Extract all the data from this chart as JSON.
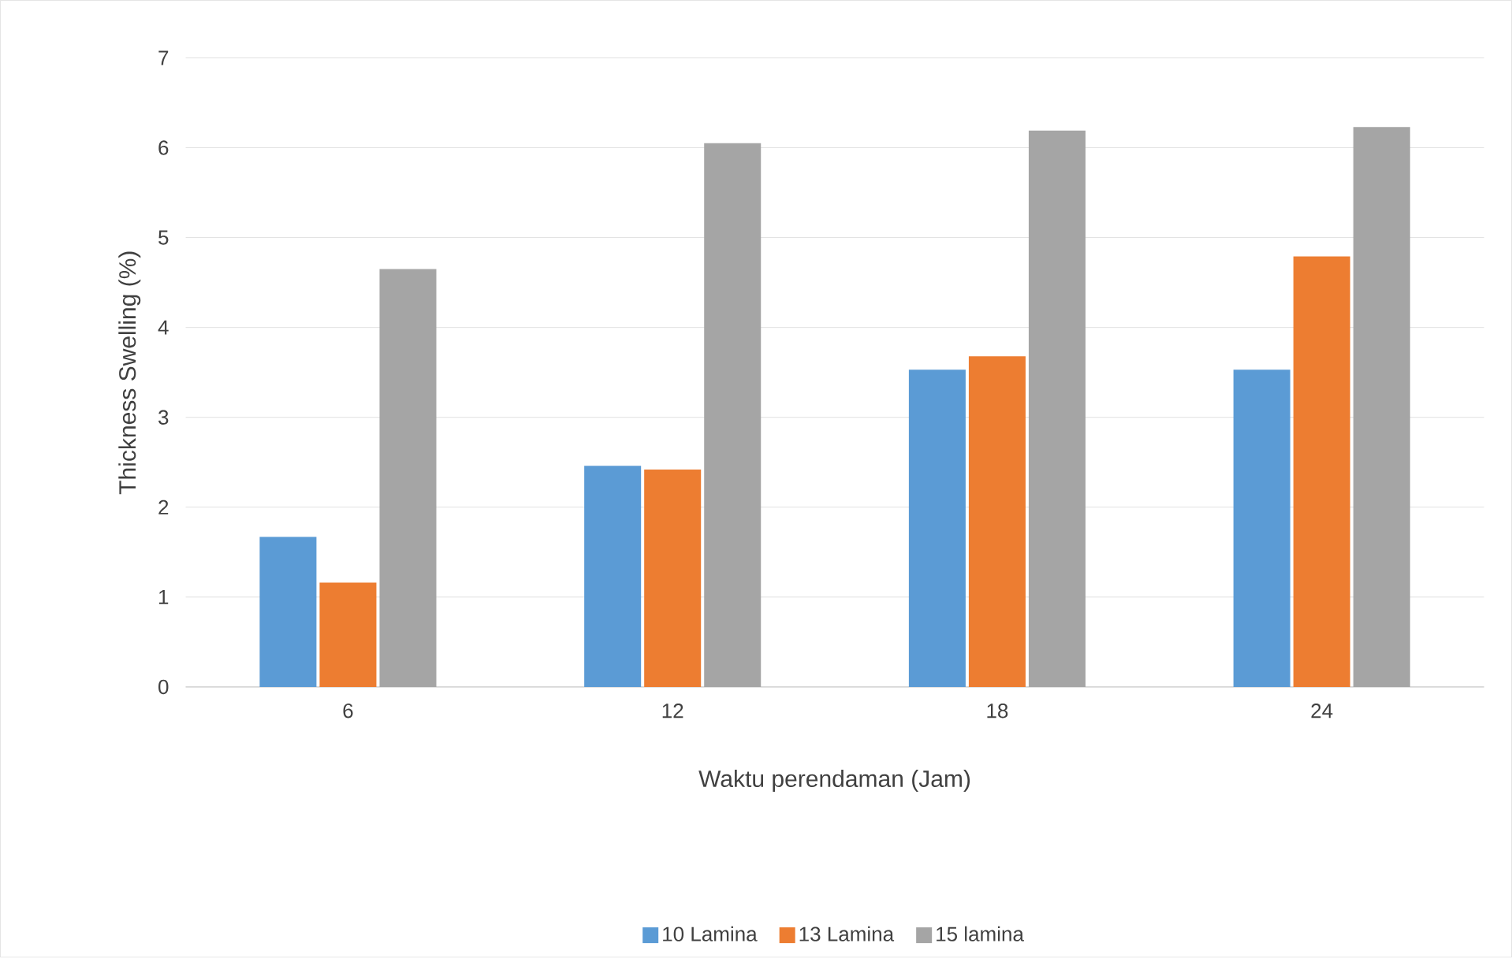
{
  "chart_data": {
    "type": "bar",
    "xlabel": "Waktu perendaman (Jam)",
    "ylabel": "Thickness Swelling (%)",
    "categories": [
      "6",
      "12",
      "18",
      "24"
    ],
    "series": [
      {
        "name": "10 Lamina",
        "color": "#5b9bd5",
        "values": [
          1.67,
          2.46,
          3.53,
          3.53
        ]
      },
      {
        "name": "13 Lamina",
        "color": "#ed7d31",
        "values": [
          1.16,
          2.42,
          3.68,
          4.79
        ]
      },
      {
        "name": "15 lamina",
        "color": "#a5a5a5",
        "values": [
          4.65,
          6.05,
          6.19,
          6.23
        ]
      }
    ],
    "ylim": [
      0,
      7
    ],
    "yticks": [
      0,
      1,
      2,
      3,
      4,
      5,
      6,
      7
    ],
    "grid": "y",
    "legend": "bottom"
  }
}
